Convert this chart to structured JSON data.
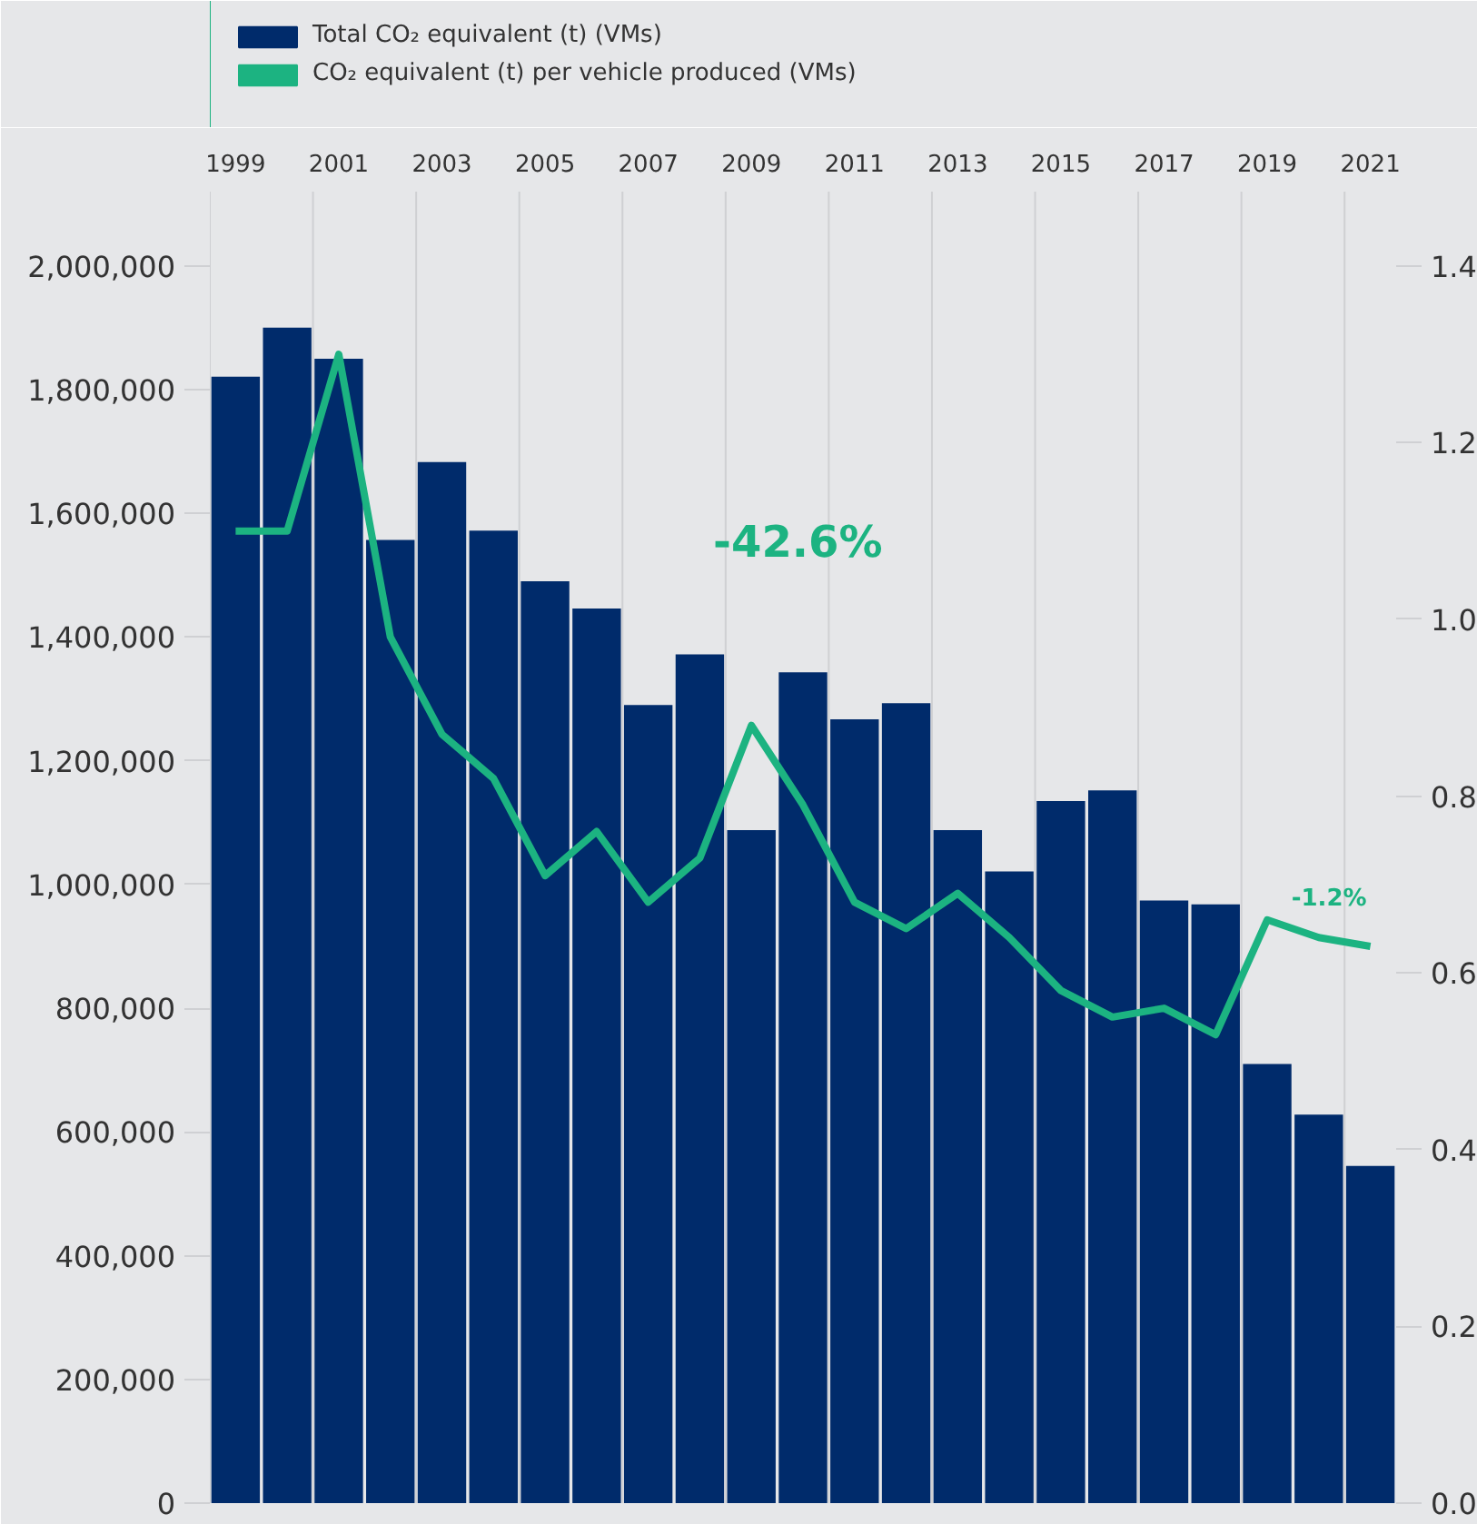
{
  "chart_data": {
    "type": "bar",
    "categories": [
      "1999",
      null,
      "2001",
      null,
      "2003",
      null,
      "2005",
      null,
      "2007",
      null,
      "2009",
      null,
      "2011",
      null,
      "2013",
      null,
      "2015",
      null,
      "2017",
      null,
      "2019",
      null,
      "2021"
    ],
    "series": [
      {
        "name": "Total CO₂ equivalent (t) (VMs)",
        "color": "#002b6b",
        "values": [
          1821000,
          1900000,
          1850000,
          1557000,
          1683000,
          1572000,
          1490000,
          1446000,
          1290000,
          1372000,
          1088000,
          1343000,
          1267000,
          1293000,
          1088000,
          1021000,
          1135000,
          1152000,
          974000,
          968000,
          710000,
          628000,
          545000
        ]
      },
      {
        "name": "CO₂ equivalent (t) per vehicle produced (VMs)",
        "type": "line",
        "axis": "y2",
        "color": "#1cb381",
        "values": [
          1.1,
          1.1,
          1.3,
          0.98,
          0.87,
          0.82,
          0.71,
          0.76,
          0.68,
          0.73,
          0.88,
          0.79,
          0.68,
          0.65,
          0.69,
          0.64,
          0.58,
          0.55,
          0.56,
          0.53,
          0.66,
          0.64,
          0.63
        ]
      }
    ],
    "ylim": [
      0,
      2120000
    ],
    "yticks": [
      {
        "value": 0,
        "label": "0"
      },
      {
        "value": 200000,
        "label": "200,000"
      },
      {
        "value": 400000,
        "label": "400,000"
      },
      {
        "value": 600000,
        "label": "600,000"
      },
      {
        "value": 800000,
        "label": "800,000"
      },
      {
        "value": 1000000,
        "label": "1,000,000"
      },
      {
        "value": 1200000,
        "label": "1,200,000"
      },
      {
        "value": 1400000,
        "label": "1,400,000"
      },
      {
        "value": 1600000,
        "label": "1,600,000"
      },
      {
        "value": 1800000,
        "label": "1,800,000"
      },
      {
        "value": 2000000,
        "label": "2,000,000"
      }
    ],
    "y2lim": [
      0,
      1.484
    ],
    "y2ticks": [
      {
        "value": 0,
        "label": "0.0"
      },
      {
        "value": 0.2,
        "label": "0.2"
      },
      {
        "value": 0.4,
        "label": "0.4"
      },
      {
        "value": 0.6,
        "label": "0.6"
      },
      {
        "value": 0.8,
        "label": "0.8"
      },
      {
        "value": 1.0,
        "label": "1.0"
      },
      {
        "value": 1.2,
        "label": "1.2"
      },
      {
        "value": 1.4,
        "label": "1.4"
      }
    ],
    "annotations": [
      "-42.6%",
      "-1.2%"
    ],
    "grid": "x",
    "legend": "top left",
    "marker": "none",
    "line_style": "solid"
  }
}
